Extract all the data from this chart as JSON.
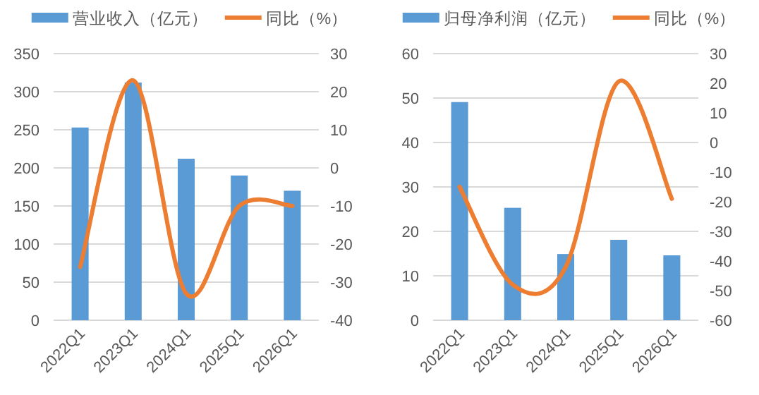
{
  "chart_data": [
    {
      "type": "bar",
      "categories": [
        "2022Q1",
        "2023Q1",
        "2024Q1",
        "2025Q1",
        "2026Q1"
      ],
      "series": [
        {
          "name": "营业收入（亿元）",
          "color": "#5b9bd5",
          "values": [
            253,
            312,
            212,
            190,
            170
          ]
        },
        {
          "name": "同比（%）",
          "type": "line",
          "axis": "y2",
          "color": "#ed7d31",
          "values": [
            -26,
            23,
            -33,
            -10,
            -10
          ]
        }
      ],
      "ylim": [
        0,
        350
      ],
      "yticks": [
        0,
        50,
        100,
        150,
        200,
        250,
        300,
        350
      ],
      "y2lim": [
        -40,
        30
      ],
      "y2ticks": [
        -40,
        -30,
        -20,
        -10,
        0,
        10,
        20,
        30
      ],
      "grid": "y",
      "legend": "top"
    },
    {
      "type": "bar",
      "categories": [
        "2022Q1",
        "2023Q1",
        "2024Q1",
        "2025Q1",
        "2026Q1"
      ],
      "series": [
        {
          "name": "归母净利润（亿元）",
          "color": "#5b9bd5",
          "values": [
            49.1,
            25.3,
            14.9,
            18.1,
            14.6
          ]
        },
        {
          "name": "同比（%）",
          "type": "line",
          "axis": "y2",
          "color": "#ed7d31",
          "values": [
            -15,
            -48,
            -42,
            20.6,
            -19
          ]
        }
      ],
      "ylim": [
        0,
        60
      ],
      "yticks": [
        0,
        10,
        20,
        30,
        40,
        50,
        60
      ],
      "y2lim": [
        -60,
        30
      ],
      "y2ticks": [
        -60,
        -50,
        -40,
        -30,
        -20,
        -10,
        0,
        10,
        20,
        30
      ],
      "grid": "y",
      "legend": "top"
    }
  ]
}
